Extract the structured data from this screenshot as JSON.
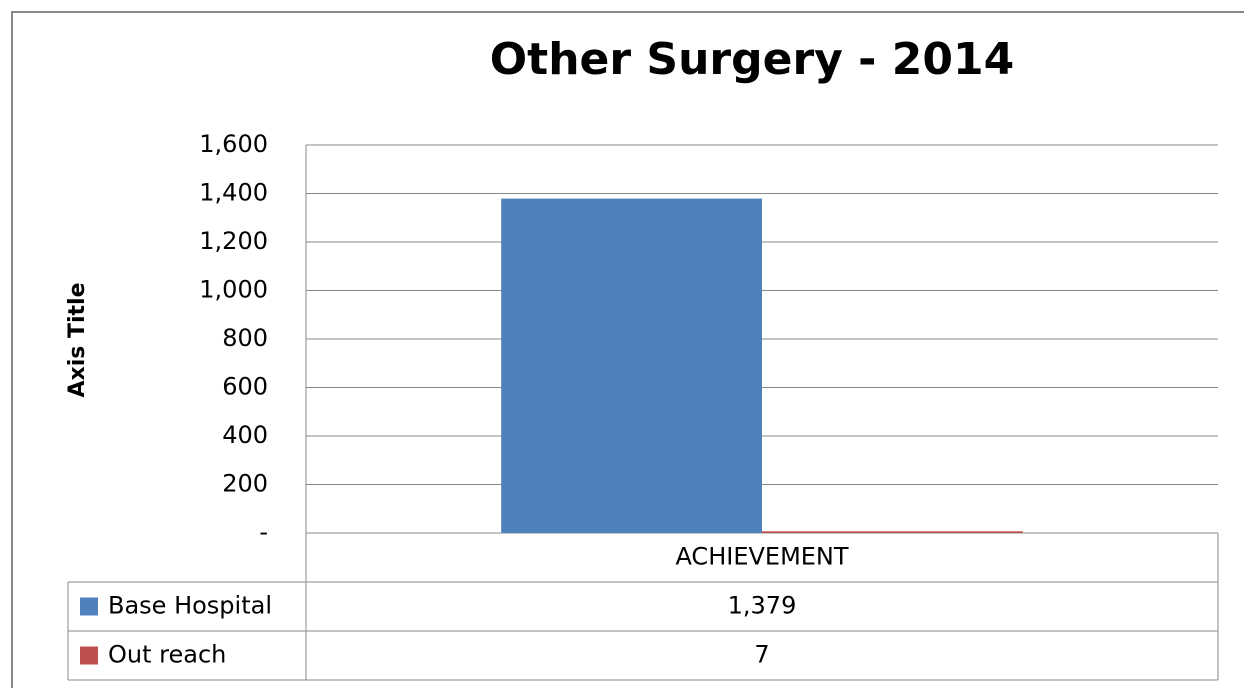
{
  "chart_data": {
    "type": "bar",
    "title": "Other Surgery - 2014",
    "y_axis_label": "Axis Title",
    "categories": [
      "ACHIEVEMENT"
    ],
    "series": [
      {
        "name": "Base Hospital",
        "color": "#4f81bd",
        "values": [
          1379
        ],
        "value_labels": [
          "1,379"
        ]
      },
      {
        "name": "Out reach",
        "color": "#c0504d",
        "values": [
          7
        ]
      }
    ],
    "ylim": [
      0,
      1600
    ],
    "yticks": [
      {
        "value": 0,
        "label": "-"
      },
      200,
      400,
      600,
      800,
      {
        "value": 1000,
        "label": "1,000"
      },
      {
        "value": 1200,
        "label": "1,200"
      },
      {
        "value": 1400,
        "label": "1,400"
      },
      {
        "value": 1600,
        "label": "1,600"
      }
    ],
    "grid": true
  }
}
